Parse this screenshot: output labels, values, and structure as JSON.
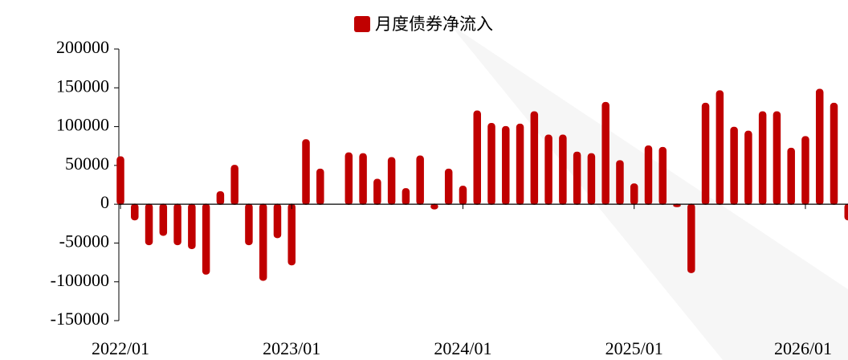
{
  "chart_data": {
    "type": "bar",
    "legend": "月度债券净流入",
    "color": "#c00000",
    "categories": [
      "2022/01",
      null,
      null,
      null,
      null,
      null,
      null,
      null,
      null,
      null,
      null,
      null,
      "2023/01",
      null,
      null,
      null,
      null,
      null,
      null,
      null,
      null,
      null,
      null,
      null,
      "2024/01",
      null,
      null,
      null,
      null,
      null,
      null,
      null,
      null,
      null,
      null,
      null,
      "2025/01",
      null,
      null,
      null,
      null,
      null,
      null,
      null,
      null,
      null,
      null,
      null,
      "2026/01",
      null,
      null,
      null
    ],
    "values": [
      61000,
      -20000,
      -52000,
      -40000,
      -52000,
      -57000,
      -90000,
      16000,
      50000,
      -52000,
      -98000,
      -43000,
      -78000,
      83000,
      45000,
      0,
      66000,
      65000,
      32000,
      60000,
      20000,
      62000,
      -6000,
      45000,
      23000,
      120000,
      104000,
      100000,
      103000,
      119000,
      89000,
      89000,
      67000,
      65000,
      131000,
      56000,
      26000,
      75000,
      73000,
      -3000,
      -88000,
      130000,
      146000,
      99000,
      94000,
      119000,
      119000,
      72000,
      87000,
      148000,
      130000,
      -20000
    ],
    "ylim": [
      -150000,
      200000
    ],
    "yticks": [
      -150000,
      -100000,
      -50000,
      0,
      50000,
      100000,
      150000,
      200000
    ]
  }
}
